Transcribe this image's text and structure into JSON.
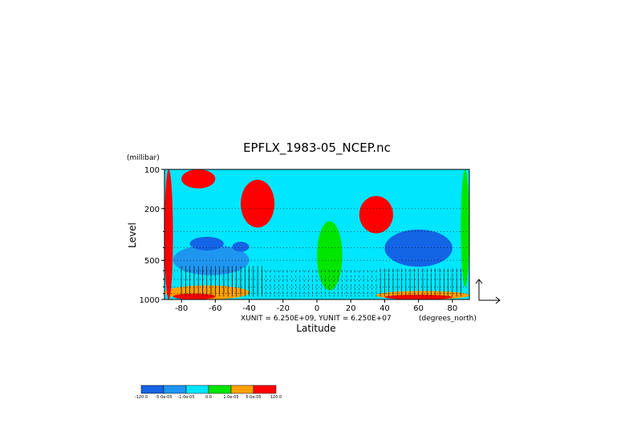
{
  "chart_data": {
    "type": "heatmap",
    "title": "EPFLX_1983-05_NCEP.nc",
    "xlabel": "Latitude",
    "ylabel": "Level",
    "y_unit": "(millibar)",
    "x_unit": "(degrees_north)",
    "vector_unit_text": "XUNIT = 6.250E+09, YUNIT = 6.250E+07",
    "xlim": [
      -90,
      90
    ],
    "ylim": [
      1000,
      100
    ],
    "y_scale": "log",
    "x_ticks": [
      -80,
      -60,
      -40,
      -20,
      0,
      20,
      40,
      60,
      80
    ],
    "x_tick_labels": [
      "-80",
      "-60",
      "-40",
      "-20",
      "0",
      "20",
      "40",
      "60",
      "80"
    ],
    "y_ticks": [
      100,
      200,
      500,
      1000
    ],
    "y_tick_labels": [
      "100",
      "200",
      "500",
      "1000"
    ],
    "gridlines": "dotted horizontal at pressure levels",
    "colorbar": {
      "placement": "bottom-left",
      "labels": [
        "-120.0",
        "-5.0e-05",
        "-1.0e-05",
        "0.0",
        "1.0e-05",
        "5.0e-05",
        "120.0"
      ],
      "colors": [
        "#1464e6",
        "#1e96f0",
        "#00e6ff",
        "#00e600",
        "#ffa000",
        "#ff0000"
      ]
    },
    "regions": [
      {
        "lat_range": [
          -70,
          90
        ],
        "level_range": [
          1000,
          100
        ],
        "value_class": 2,
        "description_of_value": "-1.0e-05 to 0.0"
      },
      {
        "lat_range": [
          -85,
          -40
        ],
        "level_range": [
          650,
          380
        ],
        "value_class": 1
      },
      {
        "lat_range": [
          40,
          80
        ],
        "level_range": [
          560,
          290
        ],
        "value_class": 0
      },
      {
        "lat_range": [
          -75,
          -55
        ],
        "level_range": [
          420,
          330
        ],
        "value_class": 0
      },
      {
        "lat_range": [
          -50,
          -40
        ],
        "level_range": [
          430,
          360
        ],
        "value_class": 0
      },
      {
        "lat_range": [
          -90,
          -40
        ],
        "level_range": [
          1000,
          780
        ],
        "value_class": 4
      },
      {
        "lat_range": [
          35,
          90
        ],
        "level_range": [
          1000,
          860
        ],
        "value_class": 4
      },
      {
        "lat_range": [
          -80,
          -60
        ],
        "level_range": [
          140,
          100
        ],
        "value_class": 5
      },
      {
        "lat_range": [
          -45,
          -25
        ],
        "level_range": [
          280,
          120
        ],
        "value_class": 5
      },
      {
        "lat_range": [
          25,
          45
        ],
        "level_range": [
          310,
          160
        ],
        "value_class": 5
      },
      {
        "lat_range": [
          0,
          15
        ],
        "level_range": [
          850,
          250
        ],
        "value_class": 3
      },
      {
        "lat_range": [
          -90,
          -85
        ],
        "level_range": [
          1000,
          100
        ],
        "value_class": 6
      },
      {
        "lat_range": [
          -85,
          -60
        ],
        "level_range": [
          1000,
          900
        ],
        "value_class": 6
      },
      {
        "lat_range": [
          40,
          80
        ],
        "level_range": [
          1000,
          920
        ],
        "value_class": 6
      },
      {
        "lat_range": [
          85,
          90
        ],
        "level_range": [
          800,
          100
        ],
        "value_class": 3
      }
    ],
    "vectors": {
      "description": "EP flux arrows, dense in lower troposphere",
      "lat_range": [
        -80,
        85
      ],
      "level_range": [
        1000,
        600
      ],
      "legend_arrow": "vertical and horizontal reference arrows at right of plot"
    }
  }
}
